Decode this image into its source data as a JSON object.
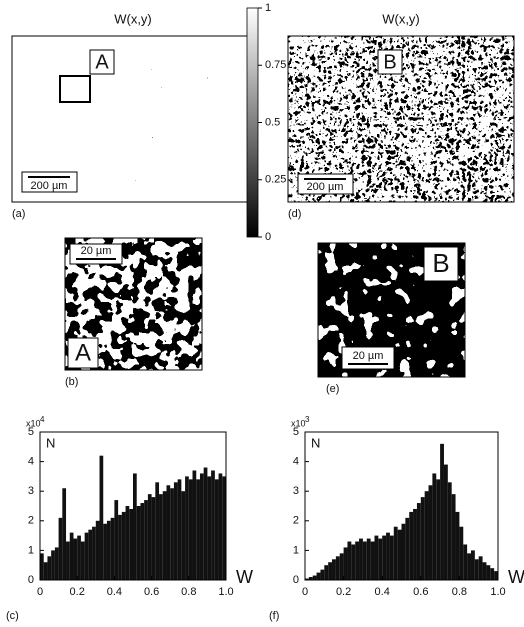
{
  "panels": [
    {
      "label": "(a)",
      "title": "W(x,y)",
      "marker": "A",
      "scale_bar": "200 µm"
    },
    {
      "label": "(b)",
      "marker": "A",
      "scale_bar": "20 µm"
    },
    {
      "label": "(d)",
      "title": "W(x,y)",
      "marker": "B",
      "scale_bar": "200 µm"
    },
    {
      "label": "(e)",
      "marker": "B",
      "scale_bar": "20 µm"
    }
  ],
  "chart_data": [
    {
      "type": "colorbar",
      "ylim": [
        0,
        1
      ],
      "yticks": [
        0,
        0.25,
        0.5,
        0.75,
        1
      ]
    },
    {
      "type": "histogram",
      "panel_label": "(c)",
      "y_label": "N",
      "x_label": "W",
      "y_multiplier": "x10",
      "y_multiplier_exponent": "4",
      "color": "#111111",
      "bins": [
        0,
        0.02,
        0.04,
        0.06,
        0.08,
        0.1,
        0.12,
        0.14,
        0.16,
        0.18,
        0.2,
        0.22,
        0.24,
        0.26,
        0.28,
        0.3,
        0.32,
        0.34,
        0.36,
        0.38,
        0.4,
        0.42,
        0.44,
        0.46,
        0.48,
        0.5,
        0.52,
        0.54,
        0.56,
        0.58,
        0.6,
        0.62,
        0.64,
        0.66,
        0.68,
        0.7,
        0.72,
        0.74,
        0.76,
        0.78,
        0.8,
        0.82,
        0.84,
        0.86,
        0.88,
        0.9,
        0.92,
        0.94,
        0.96,
        0.98,
        1
      ],
      "values": [
        0.9,
        0.6,
        0.8,
        1.0,
        1.1,
        2.1,
        3.1,
        1.3,
        1.6,
        1.4,
        1.5,
        1.3,
        1.6,
        1.7,
        1.8,
        2.0,
        4.2,
        1.9,
        2.0,
        2.1,
        2.7,
        2.2,
        2.3,
        2.5,
        2.4,
        3.6,
        2.5,
        2.6,
        2.7,
        2.9,
        2.8,
        3.3,
        2.9,
        3.0,
        3.2,
        3.1,
        3.3,
        3.4,
        3.0,
        3.5,
        3.4,
        3.7,
        3.4,
        3.6,
        3.8,
        3.5,
        3.7,
        3.4,
        3.6,
        3.5
      ],
      "xlim": [
        0,
        1
      ],
      "xticks": [
        0,
        0.2,
        0.4,
        0.6,
        0.8,
        {
          "value": 1,
          "label": "1.0"
        }
      ],
      "ylim": [
        0,
        5
      ],
      "yticks": [
        0,
        1,
        2,
        3,
        4,
        5
      ]
    },
    {
      "type": "histogram",
      "panel_label": "(f)",
      "y_label": "N",
      "x_label": "W",
      "y_multiplier": "x10",
      "y_multiplier_exponent": "3",
      "color": "#111111",
      "bins": [
        0,
        0.02,
        0.04,
        0.06,
        0.08,
        0.1,
        0.12,
        0.14,
        0.16,
        0.18,
        0.2,
        0.22,
        0.24,
        0.26,
        0.28,
        0.3,
        0.32,
        0.34,
        0.36,
        0.38,
        0.4,
        0.42,
        0.44,
        0.46,
        0.48,
        0.5,
        0.52,
        0.54,
        0.56,
        0.58,
        0.6,
        0.62,
        0.64,
        0.66,
        0.68,
        0.7,
        0.72,
        0.74,
        0.76,
        0.78,
        0.8,
        0.82,
        0.84,
        0.86,
        0.88,
        0.9,
        0.92,
        0.94,
        0.96,
        0.98,
        1
      ],
      "values": [
        0.05,
        0.1,
        0.15,
        0.25,
        0.35,
        0.5,
        0.6,
        0.7,
        0.8,
        0.9,
        1.1,
        1.3,
        1.2,
        1.3,
        1.4,
        1.3,
        1.4,
        1.3,
        1.5,
        1.4,
        1.5,
        1.6,
        1.5,
        1.8,
        1.7,
        1.9,
        2.1,
        2.3,
        2.4,
        2.6,
        2.8,
        3.0,
        3.2,
        3.6,
        3.4,
        4.6,
        3.9,
        3.3,
        2.9,
        2.3,
        1.8,
        1.2,
        0.9,
        1.0,
        0.7,
        0.8,
        0.6,
        0.5,
        0.4,
        0.3
      ],
      "xlim": [
        0,
        1
      ],
      "xticks": [
        0,
        0.2,
        0.4,
        0.6,
        0.8,
        {
          "value": 1,
          "label": "1.0"
        }
      ],
      "ylim": [
        0,
        5
      ],
      "yticks": [
        0,
        1,
        2,
        3,
        4,
        5
      ]
    }
  ]
}
